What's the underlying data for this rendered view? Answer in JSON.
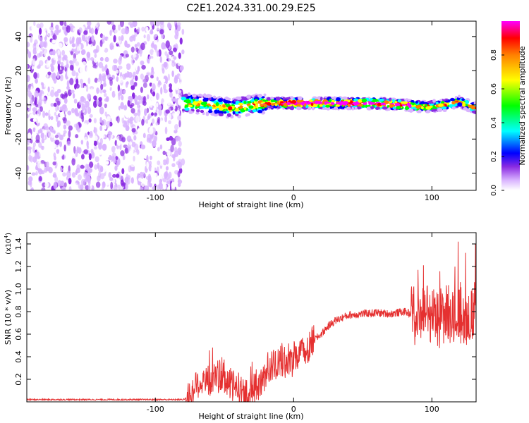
{
  "figure": {
    "title": "C2E1.2024.331.00.29.E25"
  },
  "chart_data": [
    {
      "type": "heatmap",
      "title": "C2E1.2024.331.00.29.E25",
      "xlabel": "Height of straight line (km)",
      "ylabel": "Frequency (Hz)",
      "xlim": [
        -193,
        132
      ],
      "ylim": [
        -50,
        49
      ],
      "xticks": [
        -100,
        0,
        100
      ],
      "xtick_labels": [
        "-100",
        "0",
        "100"
      ],
      "yticks": [
        -40,
        -20,
        0,
        20,
        40
      ],
      "ytick_labels": [
        "-40",
        "-20",
        "0",
        "20",
        "40"
      ],
      "colorbar": {
        "label": "Normalized spectral amplitude",
        "range": [
          0,
          1
        ],
        "ticks": [
          0.0,
          0.2,
          0.4,
          0.6,
          0.8
        ],
        "tick_labels": [
          "0.0",
          "0.2",
          "0.4",
          "0.6",
          "0.8"
        ],
        "colormap": [
          "#ffffff",
          "#d9b3ff",
          "#8a2be2",
          "#0000ff",
          "#00ffff",
          "#00ff00",
          "#ffff00",
          "#ff8000",
          "#ff0000",
          "#ff00ff"
        ]
      },
      "regions": [
        {
          "x_range": [
            -193,
            -80
          ],
          "freq_range": [
            -50,
            49
          ],
          "amplitude_range": [
            0.0,
            0.2
          ],
          "pattern": "diffuse noise"
        },
        {
          "x_range": [
            -80,
            132
          ],
          "freq_center": 0,
          "freq_halfwidth": 4,
          "amplitude_range": [
            0.1,
            1.0
          ],
          "pattern": "narrow band"
        }
      ],
      "ridge_center_freq": [
        {
          "x": -80,
          "y": 1
        },
        {
          "x": -60,
          "y": 0
        },
        {
          "x": -45,
          "y": -2
        },
        {
          "x": -30,
          "y": 0
        },
        {
          "x": -15,
          "y": 1
        },
        {
          "x": 0,
          "y": 1
        },
        {
          "x": 20,
          "y": 1
        },
        {
          "x": 40,
          "y": 1
        },
        {
          "x": 60,
          "y": 1
        },
        {
          "x": 80,
          "y": 0
        },
        {
          "x": 95,
          "y": -1
        },
        {
          "x": 110,
          "y": 0
        },
        {
          "x": 120,
          "y": 2
        },
        {
          "x": 132,
          "y": -2
        }
      ],
      "grid": false
    },
    {
      "type": "line",
      "xlabel": "Height of straight line (km)",
      "ylabel": "SNR (10 * v/v)",
      "y_multiplier_label": "(x10",
      "y_multiplier_exponent": "4",
      "y_multiplier_suffix": ")",
      "xlim": [
        -193,
        132
      ],
      "ylim": [
        0,
        1.5
      ],
      "xticks": [
        -100,
        0,
        100
      ],
      "xtick_labels": [
        "-100",
        "0",
        "100"
      ],
      "yticks": [
        0.2,
        0.4,
        0.6,
        0.8,
        1.0,
        1.2,
        1.4
      ],
      "ytick_labels": [
        "0.2",
        "0.4",
        "0.6",
        "0.8",
        "1.0",
        "1.2",
        "1.4"
      ],
      "color": "#e53030",
      "grid": false,
      "series": [
        {
          "values_note_x": "x in km, y in units of 1e4",
          "x": [
            -193,
            -160,
            -120,
            -90,
            -80,
            -75,
            -70,
            -65,
            -60,
            -55,
            -50,
            -45,
            -40,
            -35,
            -30,
            -25,
            -20,
            -15,
            -10,
            -5,
            0,
            5,
            10,
            15,
            20,
            25,
            30,
            40,
            50,
            60,
            70,
            80,
            85,
            90,
            95,
            100,
            105,
            110,
            115,
            118,
            120,
            125,
            132
          ],
          "y": [
            0.02,
            0.02,
            0.02,
            0.02,
            0.02,
            0.05,
            0.15,
            0.2,
            0.18,
            0.25,
            0.2,
            0.15,
            0.12,
            0.05,
            0.08,
            0.15,
            0.28,
            0.32,
            0.35,
            0.36,
            0.38,
            0.42,
            0.48,
            0.55,
            0.6,
            0.67,
            0.72,
            0.77,
            0.78,
            0.79,
            0.78,
            0.8,
            0.78,
            0.8,
            0.82,
            0.78,
            0.75,
            0.8,
            0.78,
            0.85,
            0.8,
            0.75,
            0.78
          ]
        }
      ]
    }
  ]
}
